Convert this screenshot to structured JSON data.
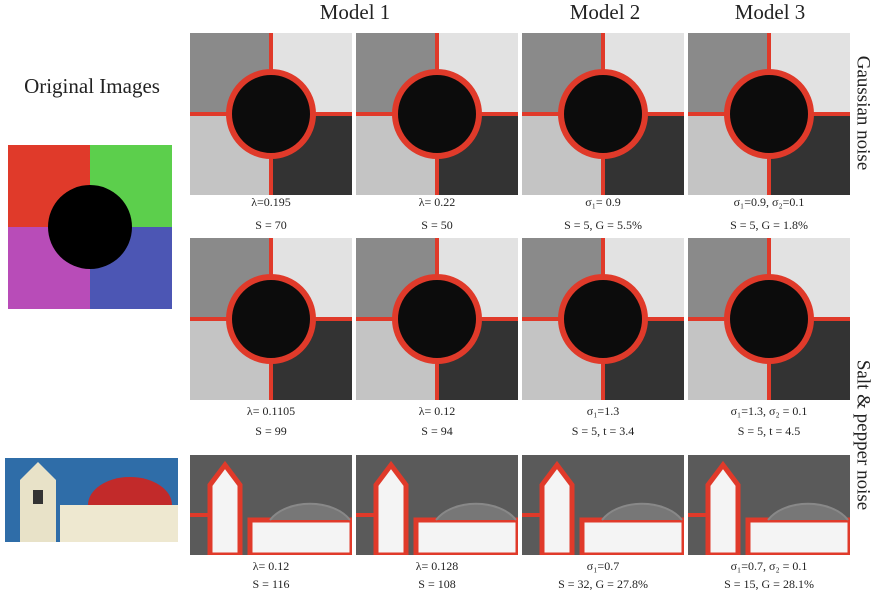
{
  "original_label": "Original Images",
  "column_headers": [
    "Model 1",
    "Model 2",
    "Model 3"
  ],
  "row_labels": [
    "Gaussian noise",
    "Salt & pepper noise"
  ],
  "captions": [
    [
      [
        "λ=0.195",
        "S = 70"
      ],
      [
        "λ= 0.22",
        "S = 50"
      ],
      [
        "σ₁= 0.9",
        "S = 5, G = 5.5%"
      ],
      [
        "σ₁=0.9, σ₂=0.1",
        "S = 5, G = 1.8%"
      ]
    ],
    [
      [
        "λ= 0.1105",
        "S = 99"
      ],
      [
        "λ= 0.12",
        "S = 94"
      ],
      [
        "σ₁=1.3",
        "S = 5, t = 3.4"
      ],
      [
        "σ₁=1.3, σ₂ = 0.1",
        "S = 5, t = 4.5"
      ]
    ],
    [
      [
        "λ= 0.12",
        "S = 116"
      ],
      [
        "λ= 0.128",
        "S = 108"
      ],
      [
        "σ₁=0.7",
        "S = 32, G = 27.8%"
      ],
      [
        "σ₁=0.7, σ₂ = 0.1",
        "S = 15, G = 28.1%"
      ]
    ]
  ]
}
